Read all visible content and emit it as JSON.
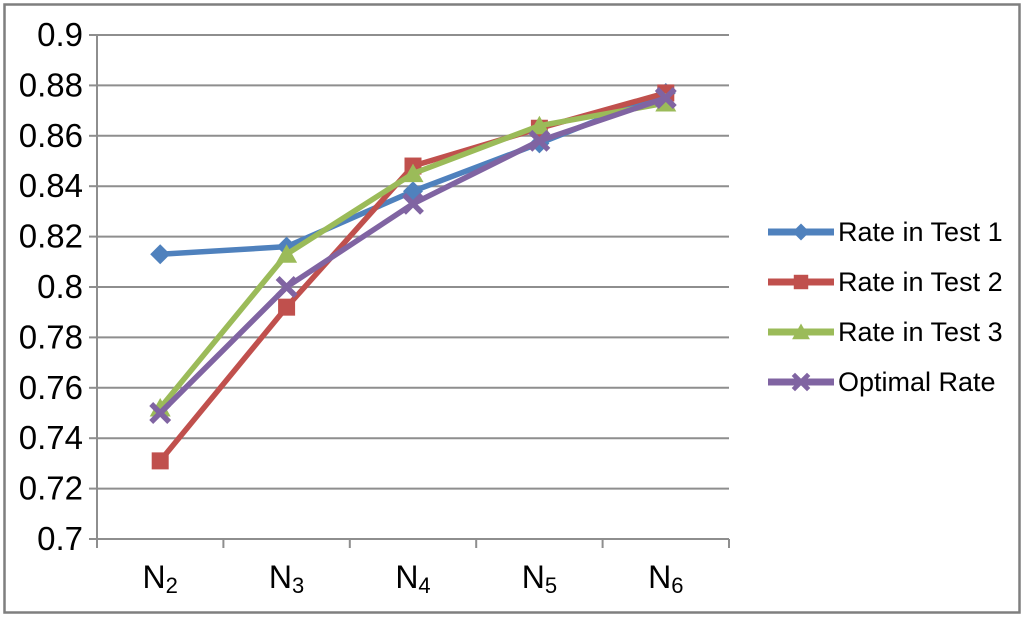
{
  "figure": {
    "background": "#ffffff",
    "border_color": "#7f7f7f"
  },
  "chart_data": {
    "type": "line",
    "title": "",
    "xlabel": "",
    "ylabel": "",
    "categories": [
      {
        "base": "N",
        "sub": "2"
      },
      {
        "base": "N",
        "sub": "3"
      },
      {
        "base": "N",
        "sub": "4"
      },
      {
        "base": "N",
        "sub": "5"
      },
      {
        "base": "N",
        "sub": "6"
      }
    ],
    "series": [
      {
        "name": "Rate in Test 1",
        "color": "#4F81BD",
        "marker": "diamond",
        "values": [
          0.813,
          0.816,
          0.838,
          0.857,
          0.877
        ]
      },
      {
        "name": "Rate in Test 2",
        "color": "#C0504D",
        "marker": "square",
        "values": [
          0.731,
          0.792,
          0.848,
          0.863,
          0.877
        ]
      },
      {
        "name": "Rate in Test 3",
        "color": "#9BBB59",
        "marker": "triangle",
        "values": [
          0.752,
          0.813,
          0.845,
          0.864,
          0.873
        ]
      },
      {
        "name": "Optimal Rate",
        "color": "#8064A2",
        "marker": "x",
        "values": [
          0.75,
          0.8,
          0.833,
          0.858,
          0.875
        ]
      }
    ],
    "y_axis": {
      "min": 0.7,
      "max": 0.9,
      "step": 0.02,
      "tick_labels": [
        "0.7",
        "0.72",
        "0.74",
        "0.76",
        "0.78",
        "0.8",
        "0.82",
        "0.84",
        "0.86",
        "0.88",
        "0.9"
      ]
    },
    "ylim": [
      0.7,
      0.9
    ],
    "grid": true,
    "legend_position": "right",
    "colors": {
      "gridline": "#8e8e8e",
      "axis": "#8e8e8e",
      "tick_text": "#000000"
    }
  }
}
